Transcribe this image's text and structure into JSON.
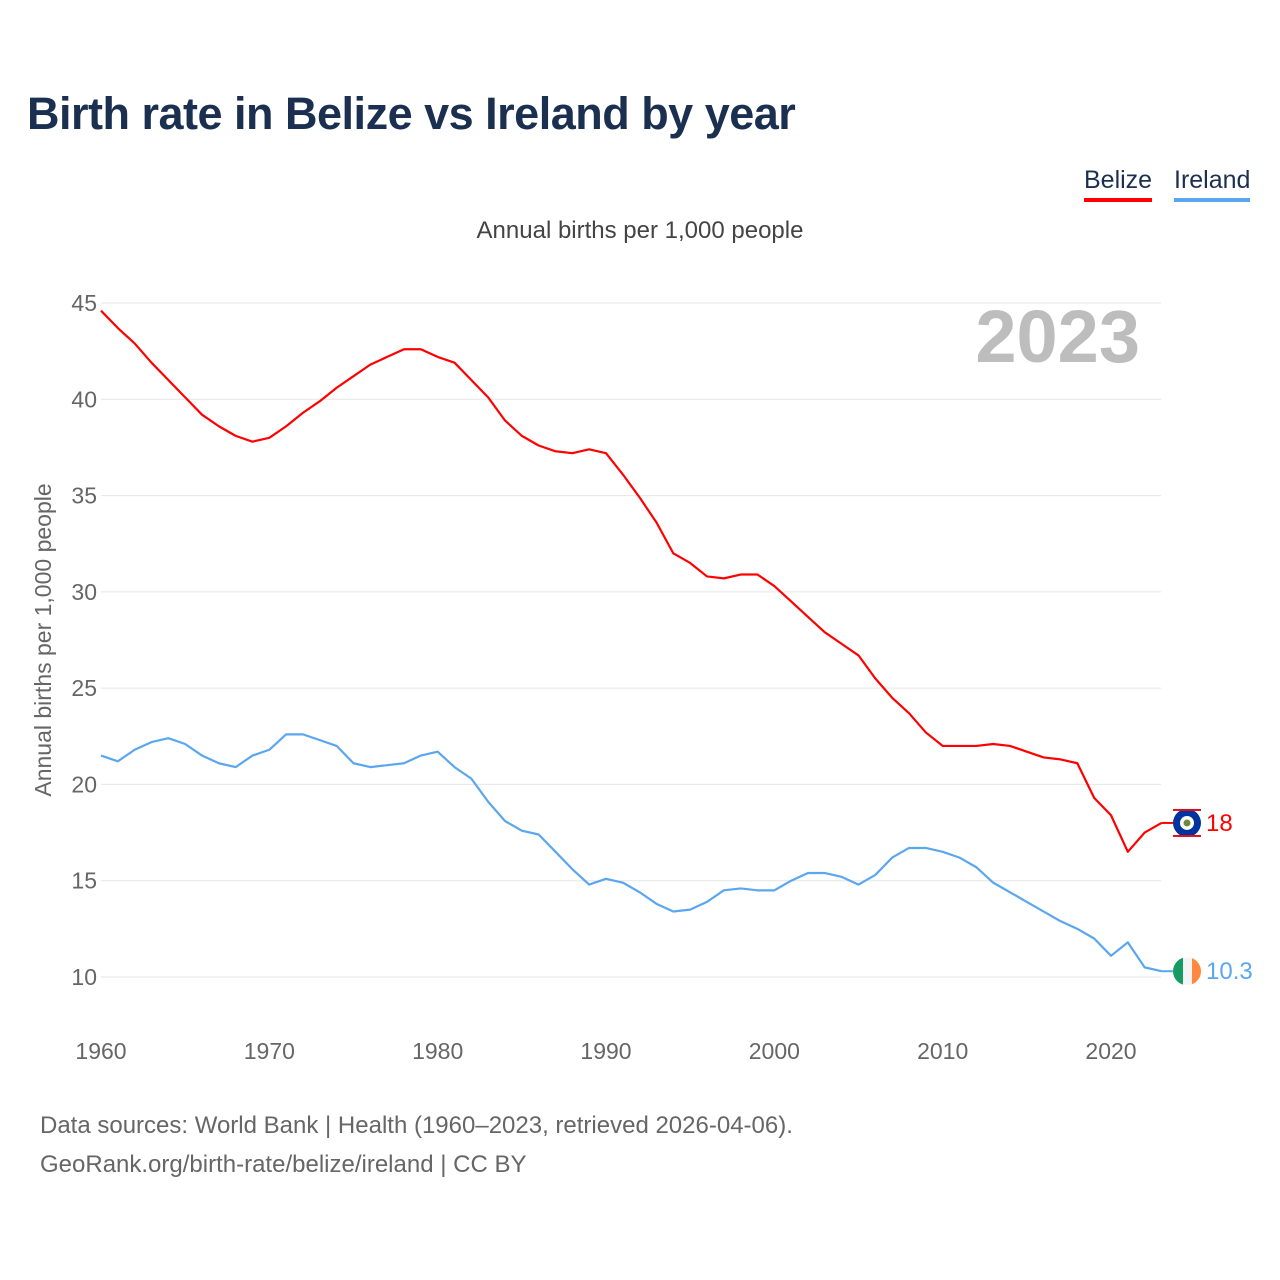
{
  "title": "Birth rate in Belize vs Ireland by year",
  "legend": [
    {
      "label": "Belize",
      "color": "#ff0000"
    },
    {
      "label": "Ireland",
      "color": "#5aa6ef"
    }
  ],
  "subtitle": "Annual births per 1,000 people",
  "year_watermark": "2023",
  "footer": {
    "line1": "Data sources: World Bank | Health (1960–2023, retrieved 2026-04-06).",
    "line2": "GeoRank.org/birth-rate/belize/ireland | CC BY"
  },
  "chart_data": {
    "type": "line",
    "title": "Birth rate in Belize vs Ireland by year",
    "xlabel": "",
    "ylabel": "Annual births per 1,000 people",
    "xlim": [
      1960,
      2023
    ],
    "ylim": [
      10,
      45
    ],
    "xticks": [
      "1960",
      "1970",
      "1980",
      "1990",
      "2000",
      "2010",
      "2020"
    ],
    "yticks": [
      "10",
      "15",
      "20",
      "25",
      "30",
      "35",
      "40",
      "45"
    ],
    "grid": true,
    "legend_position": "top-right",
    "x_start": 1960,
    "series": [
      {
        "name": "Belize",
        "color": "#ff0000",
        "end_label": "18",
        "values": [
          44.6,
          43.7,
          42.9,
          41.9,
          41.0,
          40.1,
          39.2,
          38.6,
          38.1,
          37.8,
          38.0,
          38.6,
          39.3,
          39.9,
          40.6,
          41.2,
          41.8,
          42.2,
          42.6,
          42.6,
          42.2,
          41.9,
          41.0,
          40.1,
          38.9,
          38.1,
          37.6,
          37.3,
          37.2,
          37.4,
          37.2,
          36.1,
          34.9,
          33.6,
          32.0,
          31.5,
          30.8,
          30.7,
          30.9,
          30.9,
          30.3,
          29.5,
          28.7,
          27.9,
          27.3,
          26.7,
          25.5,
          24.5,
          23.7,
          22.7,
          22.0,
          22.0,
          22.0,
          22.1,
          22.0,
          21.7,
          21.4,
          21.3,
          21.1,
          19.3,
          18.4,
          16.5,
          17.5,
          18.0
        ]
      },
      {
        "name": "Ireland",
        "color": "#5aa6ef",
        "end_label": "10.3",
        "values": [
          21.5,
          21.2,
          21.8,
          22.2,
          22.4,
          22.1,
          21.5,
          21.1,
          20.9,
          21.5,
          21.8,
          22.6,
          22.6,
          22.3,
          22.0,
          21.1,
          20.9,
          21.0,
          21.1,
          21.5,
          21.7,
          20.9,
          20.3,
          19.1,
          18.1,
          17.6,
          17.4,
          16.5,
          15.6,
          14.8,
          15.1,
          14.9,
          14.4,
          13.8,
          13.4,
          13.5,
          13.9,
          14.5,
          14.6,
          14.5,
          14.5,
          15.0,
          15.4,
          15.4,
          15.2,
          14.8,
          15.3,
          16.2,
          16.7,
          16.7,
          16.5,
          16.2,
          15.7,
          14.9,
          14.4,
          13.9,
          13.4,
          12.9,
          12.5,
          12.0,
          11.1,
          11.8,
          10.5,
          10.3
        ]
      }
    ]
  }
}
